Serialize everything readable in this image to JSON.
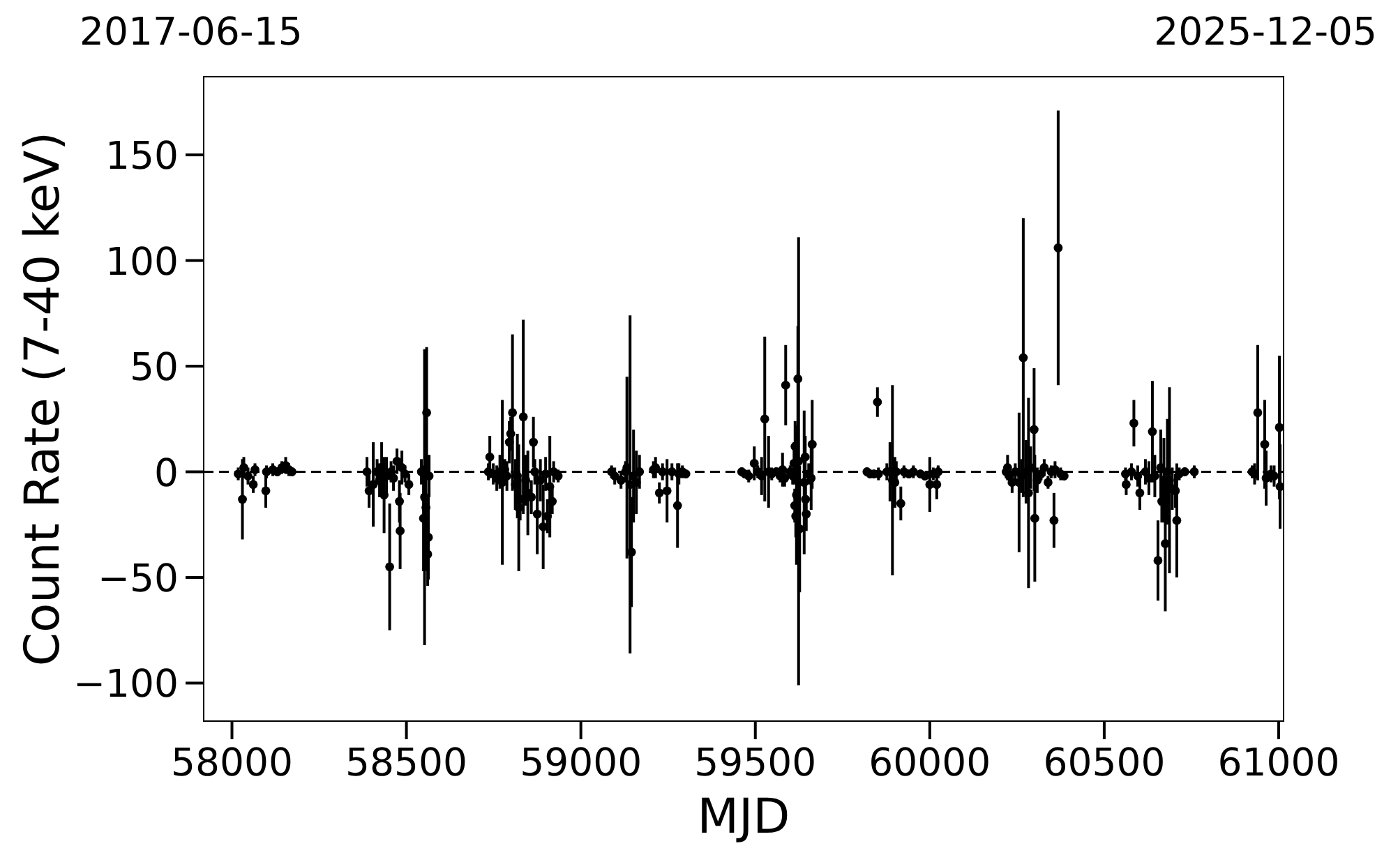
{
  "chart_data": {
    "type": "scatter",
    "xlabel": "MJD",
    "ylabel": "Count Rate (7-40 keV)",
    "annotations": [
      "2017-06-15",
      "2025-12-05"
    ],
    "color": "#000000",
    "marker": "circle",
    "xlim": [
      57919,
      61014
    ],
    "xticks": [
      58000,
      58500,
      59000,
      59500,
      60000,
      60500,
      61000
    ],
    "ylim": [
      -118,
      187
    ],
    "yticks": [
      {
        "value": -100,
        "label": "−100"
      },
      {
        "value": -50,
        "label": "−50"
      },
      0,
      50,
      100,
      150
    ],
    "ref_lines": [
      {
        "axis": "y",
        "value": 0,
        "color": "#000000",
        "line_style": "dashed"
      }
    ],
    "x": [
      58018,
      58030,
      58034,
      58046,
      58061,
      58066,
      58097,
      58099,
      58117,
      58130,
      58143,
      58154,
      58163,
      58172,
      58387,
      58393,
      58405,
      58416,
      58423,
      58429,
      58436,
      58443,
      58452,
      58456,
      58463,
      58473,
      58480,
      58482,
      58487,
      58496,
      58507,
      58543,
      58549,
      58552,
      58556,
      58558,
      58561,
      58563,
      58565,
      58735,
      58739,
      58749,
      58759,
      58768,
      58775,
      58782,
      58788,
      58795,
      58799,
      58804,
      58812,
      58818,
      58822,
      58826,
      58835,
      58842,
      58848,
      58858,
      58864,
      58868,
      58875,
      58884,
      58892,
      58899,
      58904,
      58911,
      58918,
      58922,
      58935,
      59088,
      59097,
      59115,
      59128,
      59132,
      59141,
      59145,
      59151,
      59159,
      59168,
      59208,
      59214,
      59225,
      59234,
      59247,
      59261,
      59277,
      59281,
      59291,
      59301,
      59461,
      59470,
      59481,
      59497,
      59507,
      59518,
      59527,
      59538,
      59547,
      59560,
      59571,
      59578,
      59584,
      59587,
      59600,
      59607,
      59611,
      59613,
      59614,
      59616,
      59618,
      59622,
      59624,
      59627,
      59640,
      59643,
      59644,
      59646,
      59653,
      59660,
      59663,
      59820,
      59829,
      59840,
      59850,
      59853,
      59877,
      59886,
      59893,
      59900,
      59904,
      59917,
      59926,
      59940,
      59953,
      59973,
      59986,
      60000,
      60010,
      60020,
      60024,
      60219,
      60223,
      60228,
      60236,
      60245,
      60256,
      60263,
      60268,
      60276,
      60283,
      60289,
      60299,
      60301,
      60308,
      60319,
      60328,
      60339,
      60348,
      60356,
      60359,
      60368,
      60375,
      60385,
      60561,
      60563,
      60578,
      60585,
      60596,
      60602,
      60618,
      60628,
      60638,
      60645,
      60654,
      60662,
      60665,
      60671,
      60675,
      60681,
      60687,
      60695,
      60704,
      60708,
      60715,
      60731,
      60758,
      60924,
      60931,
      60940,
      60960,
      60964,
      60978,
      60987,
      61002,
      61004
    ],
    "values": [
      -1,
      -13,
      2,
      -2,
      -6,
      1,
      -9,
      0,
      1,
      0,
      2,
      3,
      1,
      0,
      0,
      -9,
      -6,
      0,
      -4,
      2,
      -11,
      -2,
      -45,
      0,
      -3,
      5,
      -14,
      -28,
      2,
      -1,
      -6,
      0,
      -22,
      -12,
      -17,
      28,
      -39,
      -31,
      -2,
      0,
      7,
      -1,
      -3,
      0,
      -5,
      1,
      -2,
      14,
      18,
      28,
      -6,
      -2,
      -17,
      -13,
      26,
      -4,
      -10,
      -12,
      14,
      0,
      -20,
      -4,
      -26,
      -1,
      -21,
      -7,
      -14,
      0,
      -2,
      0,
      -2,
      -4,
      0,
      2,
      -6,
      -38,
      -2,
      -5,
      0,
      1,
      2,
      -10,
      0,
      -9,
      0,
      -16,
      -1,
      0,
      -1,
      0,
      -1,
      -2,
      4,
      0,
      -2,
      25,
      0,
      -1,
      0,
      -2,
      1,
      -3,
      41,
      0,
      -2,
      4,
      -16,
      12,
      -21,
      -11,
      44,
      5,
      -27,
      -5,
      7,
      -13,
      -20,
      -1,
      -3,
      13,
      0,
      -1,
      -1,
      33,
      -1,
      0,
      0,
      -4,
      -5,
      0,
      -15,
      0,
      -1,
      0,
      -1,
      -2,
      -6,
      -1,
      -6,
      0,
      0,
      2,
      -2,
      -5,
      0,
      -5,
      -2,
      54,
      0,
      -10,
      2,
      20,
      -22,
      -4,
      -1,
      2,
      -5,
      0,
      -23,
      1,
      106,
      -1,
      -2,
      -1,
      -6,
      0,
      23,
      -2,
      -10,
      0,
      -3,
      19,
      -2,
      -42,
      2,
      -14,
      -4,
      -34,
      0,
      -4,
      -8,
      -9,
      -23,
      -1,
      0,
      0,
      0,
      -1,
      28,
      13,
      -3,
      -1,
      -2,
      21,
      -7
    ],
    "errors": [
      3,
      19,
      5,
      4,
      4,
      3,
      8,
      3,
      3,
      2,
      3,
      4,
      3,
      2,
      7,
      8,
      20,
      6,
      8,
      12,
      18,
      9,
      30,
      5,
      6,
      6,
      10,
      18,
      8,
      4,
      5,
      6,
      25,
      70,
      30,
      31,
      15,
      20,
      10,
      4,
      10,
      5,
      6,
      8,
      39,
      5,
      7,
      10,
      8,
      37,
      12,
      20,
      30,
      10,
      46,
      12,
      20,
      8,
      12,
      6,
      19,
      10,
      20,
      8,
      8,
      24,
      6,
      5,
      3,
      3,
      4,
      4,
      5,
      43,
      80,
      26,
      22,
      15,
      8,
      4,
      5,
      5,
      4,
      15,
      4,
      20,
      5,
      3,
      2,
      2,
      2,
      3,
      8,
      3,
      9,
      39,
      17,
      3,
      2,
      3,
      8,
      4,
      19,
      3,
      4,
      10,
      8,
      12,
      10,
      33,
      25,
      106,
      30,
      34,
      10,
      8,
      8,
      5,
      15,
      21,
      2,
      2,
      2,
      7,
      3,
      4,
      14,
      45,
      12,
      5,
      8,
      3,
      2,
      3,
      2,
      2,
      13,
      3,
      7,
      3,
      3,
      6,
      4,
      5,
      4,
      33,
      8,
      66,
      15,
      45,
      10,
      29,
      30,
      6,
      3,
      4,
      3,
      3,
      13,
      4,
      65,
      3,
      2,
      3,
      5,
      4,
      11,
      5,
      8,
      6,
      8,
      24,
      10,
      19,
      18,
      10,
      20,
      32,
      25,
      44,
      10,
      8,
      27,
      3,
      2,
      3,
      3,
      5,
      32,
      21,
      13,
      4,
      5,
      34,
      20
    ]
  }
}
